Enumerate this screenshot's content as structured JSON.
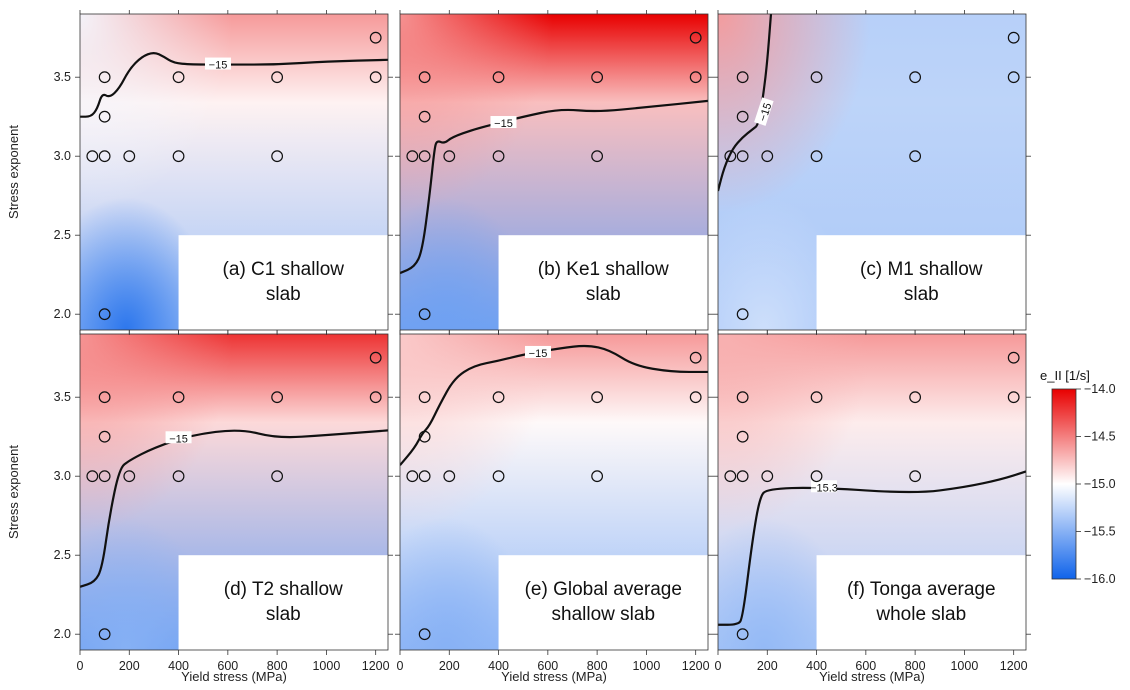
{
  "chart_data": {
    "type": "heatmap",
    "x_axis": {
      "label": "Yield stress (MPa)",
      "range": [
        0,
        1250
      ],
      "ticks": [
        0,
        200,
        400,
        600,
        800,
        1000,
        1200
      ]
    },
    "y_axis": {
      "label": "Stress exponent",
      "range": [
        1.9,
        3.9
      ],
      "ticks": [
        "2.0",
        "2.5",
        "3.0",
        "3.5"
      ]
    },
    "colorbar": {
      "label": "e_II [1/s]",
      "range": [
        -16.0,
        -14.0
      ],
      "ticks": [
        "-14.0",
        "-14.5",
        "-15.0",
        "-15.5",
        "-16.0"
      ],
      "colors": {
        "low": "#0f63ea",
        "mid": "#ffffff",
        "high": "#e80000"
      }
    },
    "panels": [
      {
        "id": "a",
        "label_lines": [
          "(a) C1 shallow",
          "slab"
        ],
        "contour_level": "-15",
        "contour": [
          [
            0,
            3.25
          ],
          [
            45,
            3.25
          ],
          [
            70,
            3.3
          ],
          [
            90,
            3.4
          ],
          [
            120,
            3.37
          ],
          [
            160,
            3.43
          ],
          [
            200,
            3.55
          ],
          [
            250,
            3.63
          ],
          [
            300,
            3.66
          ],
          [
            340,
            3.63
          ],
          [
            380,
            3.59
          ],
          [
            450,
            3.58
          ],
          [
            600,
            3.58
          ],
          [
            800,
            3.58
          ],
          [
            1000,
            3.6
          ],
          [
            1250,
            3.61
          ]
        ],
        "contour_label_at": [
          560,
          3.58
        ],
        "field_top": -14.6,
        "field_left": -15.05,
        "field_lowleft": -15.9,
        "field_bottom": -15.4,
        "sample_points": [
          [
            50,
            3.0
          ],
          [
            100,
            3.0
          ],
          [
            200,
            3.0
          ],
          [
            400,
            3.0
          ],
          [
            800,
            3.0
          ],
          [
            100,
            3.25
          ],
          [
            100,
            3.5
          ],
          [
            400,
            3.5
          ],
          [
            800,
            3.5
          ],
          [
            1200,
            3.5
          ],
          [
            1200,
            3.75
          ],
          [
            100,
            2.0
          ]
        ]
      },
      {
        "id": "b",
        "label_lines": [
          "(b) Ke1 shallow",
          "slab"
        ],
        "contour_level": "-15",
        "contour": [
          [
            0,
            2.26
          ],
          [
            60,
            2.3
          ],
          [
            90,
            2.4
          ],
          [
            120,
            2.75
          ],
          [
            140,
            3.05
          ],
          [
            150,
            3.1
          ],
          [
            180,
            3.08
          ],
          [
            210,
            3.12
          ],
          [
            300,
            3.17
          ],
          [
            400,
            3.21
          ],
          [
            500,
            3.25
          ],
          [
            650,
            3.3
          ],
          [
            800,
            3.28
          ],
          [
            1000,
            3.31
          ],
          [
            1250,
            3.35
          ]
        ],
        "contour_label_at": [
          420,
          3.21
        ],
        "field_top": -14.0,
        "field_left": -14.6,
        "field_lowleft": -15.6,
        "field_bottom": -15.6,
        "sample_points": [
          [
            50,
            3.0
          ],
          [
            100,
            3.0
          ],
          [
            200,
            3.0
          ],
          [
            400,
            3.0
          ],
          [
            800,
            3.0
          ],
          [
            100,
            3.25
          ],
          [
            100,
            3.5
          ],
          [
            400,
            3.5
          ],
          [
            800,
            3.5
          ],
          [
            1200,
            3.5
          ],
          [
            1200,
            3.75
          ],
          [
            100,
            2.0
          ]
        ]
      },
      {
        "id": "c",
        "label_lines": [
          "(c) M1 shallow",
          "slab"
        ],
        "contour_level": "-15",
        "contour": [
          [
            0,
            2.78
          ],
          [
            25,
            2.93
          ],
          [
            60,
            3.05
          ],
          [
            100,
            3.12
          ],
          [
            140,
            3.17
          ],
          [
            165,
            3.2
          ],
          [
            185,
            3.4
          ],
          [
            200,
            3.6
          ],
          [
            215,
            3.9
          ]
        ],
        "contour_label_at": [
          190,
          3.28
        ],
        "field_top": -15.3,
        "field_left": -14.6,
        "field_lowleft": -15.2,
        "field_bottom": -15.35,
        "sample_points": [
          [
            50,
            3.0
          ],
          [
            100,
            3.0
          ],
          [
            200,
            3.0
          ],
          [
            400,
            3.0
          ],
          [
            800,
            3.0
          ],
          [
            100,
            3.25
          ],
          [
            100,
            3.5
          ],
          [
            400,
            3.5
          ],
          [
            800,
            3.5
          ],
          [
            1200,
            3.5
          ],
          [
            1200,
            3.75
          ],
          [
            100,
            2.0
          ]
        ]
      },
      {
        "id": "d",
        "label_lines": [
          "(d) T2 shallow",
          "slab"
        ],
        "contour_level": "-15",
        "contour": [
          [
            0,
            2.3
          ],
          [
            60,
            2.33
          ],
          [
            90,
            2.42
          ],
          [
            120,
            2.75
          ],
          [
            160,
            3.05
          ],
          [
            200,
            3.1
          ],
          [
            300,
            3.18
          ],
          [
            450,
            3.26
          ],
          [
            650,
            3.3
          ],
          [
            800,
            3.24
          ],
          [
            1000,
            3.26
          ],
          [
            1250,
            3.29
          ]
        ],
        "contour_label_at": [
          400,
          3.24
        ],
        "field_top": -14.2,
        "field_left": -14.6,
        "field_lowleft": -15.5,
        "field_bottom": -15.6,
        "sample_points": [
          [
            50,
            3.0
          ],
          [
            100,
            3.0
          ],
          [
            200,
            3.0
          ],
          [
            400,
            3.0
          ],
          [
            800,
            3.0
          ],
          [
            100,
            3.25
          ],
          [
            100,
            3.5
          ],
          [
            400,
            3.5
          ],
          [
            800,
            3.5
          ],
          [
            1200,
            3.5
          ],
          [
            1200,
            3.75
          ],
          [
            100,
            2.0
          ]
        ]
      },
      {
        "id": "e",
        "label_lines": [
          "(e) Global average",
          "shallow slab"
        ],
        "contour_level": "-15",
        "contour": [
          [
            0,
            3.07
          ],
          [
            60,
            3.18
          ],
          [
            90,
            3.27
          ],
          [
            120,
            3.32
          ],
          [
            160,
            3.45
          ],
          [
            220,
            3.62
          ],
          [
            300,
            3.7
          ],
          [
            400,
            3.73
          ],
          [
            500,
            3.77
          ],
          [
            650,
            3.81
          ],
          [
            760,
            3.83
          ],
          [
            850,
            3.8
          ],
          [
            950,
            3.7
          ],
          [
            1100,
            3.66
          ],
          [
            1250,
            3.66
          ]
        ],
        "contour_label_at": [
          560,
          3.78
        ],
        "field_top": -14.6,
        "field_left": -14.8,
        "field_lowleft": -15.5,
        "field_bottom": -15.45,
        "sample_points": [
          [
            50,
            3.0
          ],
          [
            100,
            3.0
          ],
          [
            200,
            3.0
          ],
          [
            400,
            3.0
          ],
          [
            800,
            3.0
          ],
          [
            100,
            3.25
          ],
          [
            100,
            3.5
          ],
          [
            400,
            3.5
          ],
          [
            800,
            3.5
          ],
          [
            1200,
            3.5
          ],
          [
            1200,
            3.75
          ],
          [
            100,
            2.0
          ]
        ]
      },
      {
        "id": "f",
        "label_lines": [
          "(f) Tonga average",
          "whole slab"
        ],
        "contour_level": "-15.3",
        "contour": [
          [
            0,
            2.06
          ],
          [
            80,
            2.06
          ],
          [
            100,
            2.1
          ],
          [
            140,
            2.6
          ],
          [
            170,
            2.87
          ],
          [
            200,
            2.92
          ],
          [
            400,
            2.93
          ],
          [
            800,
            2.89
          ],
          [
            1000,
            2.93
          ],
          [
            1150,
            2.98
          ],
          [
            1250,
            3.03
          ]
        ],
        "contour_label_at": [
          430,
          2.93
        ],
        "field_top": -14.6,
        "field_left": -14.7,
        "field_lowleft": -15.45,
        "field_bottom": -15.35,
        "sample_points": [
          [
            50,
            3.0
          ],
          [
            100,
            3.0
          ],
          [
            200,
            3.0
          ],
          [
            400,
            3.0
          ],
          [
            800,
            3.0
          ],
          [
            100,
            3.25
          ],
          [
            100,
            3.5
          ],
          [
            400,
            3.5
          ],
          [
            800,
            3.5
          ],
          [
            1200,
            3.5
          ],
          [
            1200,
            3.75
          ],
          [
            100,
            2.0
          ]
        ]
      }
    ]
  }
}
